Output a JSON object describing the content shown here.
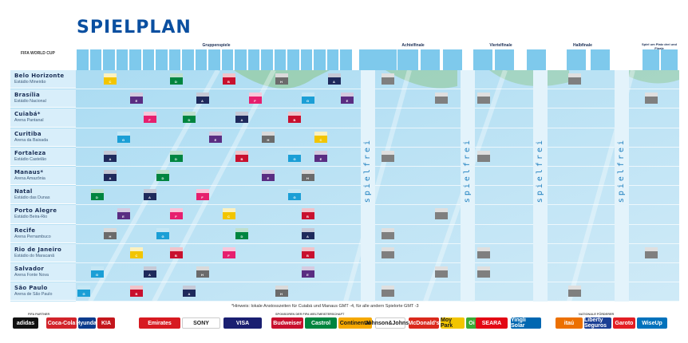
{
  "title": "SPIELPLAN",
  "logo_text": "FIFA WORLD CUP",
  "phases": [
    {
      "label": "Gruppenspiele"
    },
    {
      "label": "Achtelfinale"
    },
    {
      "label": "Viertelfinale"
    },
    {
      "label": "Halbfinale"
    },
    {
      "label": "Spiel um Platz drei und Finale"
    }
  ],
  "cities": [
    {
      "name": "Belo Horizonte",
      "stadium": "Estádio Mineirão"
    },
    {
      "name": "Brasília",
      "stadium": "Estádio Nacional"
    },
    {
      "name": "Cuiabá*",
      "stadium": "Arena Pantanal"
    },
    {
      "name": "Curitiba",
      "stadium": "Arena da Baixada"
    },
    {
      "name": "Fortaleza",
      "stadium": "Estádio Castelão"
    },
    {
      "name": "Manaus*",
      "stadium": "Arena Amazônia"
    },
    {
      "name": "Natal",
      "stadium": "Estádio das Dunas"
    },
    {
      "name": "Porto Alegre",
      "stadium": "Estádio Beira-Rio"
    },
    {
      "name": "Recife",
      "stadium": "Arena Pernambuco"
    },
    {
      "name": "Rio de Janeiro",
      "stadium": "Estádio do Maracanã"
    },
    {
      "name": "Salvador",
      "stadium": "Arena Fonte Nova"
    },
    {
      "name": "São Paulo",
      "stadium": "Arena de São Paulo"
    }
  ],
  "spielfrei_label": "spielfrei",
  "note": "*Hinweis: lokale Anstosszeiten für Cuiabá und Manaus GMT -4, für alle andern Spielorte GMT -3",
  "partner_labels": {
    "fifa": "FIFA PARTNER",
    "sponsors": "SPONSOREN DER FIFA WELTMEISTERSCHAFT",
    "national": "NATIONALE FÖRDERER"
  },
  "sponsors": [
    {
      "name": "adidas",
      "color": "#111111"
    },
    {
      "name": "Coca-Cola",
      "color": "#d2232a"
    },
    {
      "name": "Hyundai",
      "color": "#0b3b8c"
    },
    {
      "name": "KIA",
      "color": "#c4161c"
    },
    {
      "name": "Emirates",
      "color": "#d71a21"
    },
    {
      "name": "SONY",
      "color": "#ffffff"
    },
    {
      "name": "VISA",
      "color": "#1a1f71"
    },
    {
      "name": "Budweiser",
      "color": "#c8102e"
    },
    {
      "name": "Castrol",
      "color": "#00853f"
    },
    {
      "name": "Continental",
      "color": "#f5a800"
    },
    {
      "name": "Johnson&Johnson",
      "color": "#ffffff"
    },
    {
      "name": "McDonald's",
      "color": "#da291c"
    },
    {
      "name": "Moy Park",
      "color": "#f2c500"
    },
    {
      "name": "Oi",
      "color": "#3aaa35"
    },
    {
      "name": "SEARA",
      "color": "#e30613"
    },
    {
      "name": "Yingli Solar",
      "color": "#0067b1"
    },
    {
      "name": "itaú",
      "color": "#ec7000"
    },
    {
      "name": "Liberty Seguros",
      "color": "#1b3f94"
    },
    {
      "name": "Garoto",
      "color": "#e31e24"
    },
    {
      "name": "WiseUp",
      "color": "#0072bc"
    }
  ],
  "colors": {
    "title": "#0a4fa0",
    "grid_bg": "#bde3f5",
    "header_cell": "#7ec9ec",
    "spielfrei_text": "#1d7fbf"
  },
  "group_colors": {
    "A": "#1f2a5c",
    "B": "#c8102e",
    "C": "#f2c500",
    "D": "#00853f",
    "E": "#5a2d82",
    "F": "#e61f6e",
    "G": "#1b9fd6",
    "H": "#6b6b6b"
  },
  "matches": [
    {
      "row": 0,
      "col": 2,
      "g": "C"
    },
    {
      "row": 0,
      "col": 7,
      "g": "D"
    },
    {
      "row": 0,
      "col": 11,
      "g": "B"
    },
    {
      "row": 0,
      "col": 15,
      "g": "H"
    },
    {
      "row": 0,
      "col": 19,
      "g": "A"
    },
    {
      "row": 1,
      "col": 4,
      "g": "E"
    },
    {
      "row": 1,
      "col": 9,
      "g": "A"
    },
    {
      "row": 1,
      "col": 13,
      "g": "F"
    },
    {
      "row": 1,
      "col": 17,
      "g": "G"
    },
    {
      "row": 1,
      "col": 20,
      "g": "E"
    },
    {
      "row": 2,
      "col": 5,
      "g": "F"
    },
    {
      "row": 2,
      "col": 8,
      "g": "D"
    },
    {
      "row": 2,
      "col": 12,
      "g": "A"
    },
    {
      "row": 2,
      "col": 16,
      "g": "B"
    },
    {
      "row": 3,
      "col": 3,
      "g": "G"
    },
    {
      "row": 3,
      "col": 10,
      "g": "E"
    },
    {
      "row": 3,
      "col": 14,
      "g": "H"
    },
    {
      "row": 3,
      "col": 18,
      "g": "C"
    },
    {
      "row": 4,
      "col": 2,
      "g": "A"
    },
    {
      "row": 4,
      "col": 7,
      "g": "D"
    },
    {
      "row": 4,
      "col": 12,
      "g": "B"
    },
    {
      "row": 4,
      "col": 16,
      "g": "G"
    },
    {
      "row": 4,
      "col": 18,
      "g": "E"
    },
    {
      "row": 5,
      "col": 2,
      "g": "A"
    },
    {
      "row": 5,
      "col": 6,
      "g": "D"
    },
    {
      "row": 5,
      "col": 14,
      "g": "E"
    },
    {
      "row": 5,
      "col": 17,
      "g": "H"
    },
    {
      "row": 6,
      "col": 1,
      "g": "D"
    },
    {
      "row": 6,
      "col": 5,
      "g": "A"
    },
    {
      "row": 6,
      "col": 9,
      "g": "F"
    },
    {
      "row": 6,
      "col": 16,
      "g": "G"
    },
    {
      "row": 7,
      "col": 3,
      "g": "E"
    },
    {
      "row": 7,
      "col": 7,
      "g": "F"
    },
    {
      "row": 7,
      "col": 11,
      "g": "C"
    },
    {
      "row": 7,
      "col": 17,
      "g": "B"
    },
    {
      "row": 8,
      "col": 2,
      "g": "H"
    },
    {
      "row": 8,
      "col": 6,
      "g": "G"
    },
    {
      "row": 8,
      "col": 12,
      "g": "D"
    },
    {
      "row": 8,
      "col": 17,
      "g": "A"
    },
    {
      "row": 9,
      "col": 4,
      "g": "C"
    },
    {
      "row": 9,
      "col": 7,
      "g": "B"
    },
    {
      "row": 9,
      "col": 11,
      "g": "F"
    },
    {
      "row": 9,
      "col": 17,
      "g": "B"
    },
    {
      "row": 10,
      "col": 1,
      "g": "G"
    },
    {
      "row": 10,
      "col": 5,
      "g": "A"
    },
    {
      "row": 10,
      "col": 9,
      "g": "H"
    },
    {
      "row": 10,
      "col": 17,
      "g": "E"
    },
    {
      "row": 11,
      "col": 0,
      "g": "G"
    },
    {
      "row": 11,
      "col": 4,
      "g": "B"
    },
    {
      "row": 11,
      "col": 8,
      "g": "A"
    },
    {
      "row": 11,
      "col": 15,
      "g": "H"
    }
  ],
  "knockout_matches": [
    {
      "row": 0,
      "col": "ko1"
    },
    {
      "row": 1,
      "col": "ko2"
    },
    {
      "row": 4,
      "col": "ko1"
    },
    {
      "row": 7,
      "col": "ko2"
    },
    {
      "row": 8,
      "col": "ko1"
    },
    {
      "row": 9,
      "col": "ko1"
    },
    {
      "row": 10,
      "col": "ko2"
    },
    {
      "row": 11,
      "col": "ko1"
    },
    {
      "row": 4,
      "col": "qf"
    },
    {
      "row": 9,
      "col": "qf"
    },
    {
      "row": 1,
      "col": "qf"
    },
    {
      "row": 10,
      "col": "qf"
    },
    {
      "row": 0,
      "col": "sf"
    },
    {
      "row": 11,
      "col": "sf"
    },
    {
      "row": 1,
      "col": "fin"
    },
    {
      "row": 9,
      "col": "fin"
    }
  ]
}
